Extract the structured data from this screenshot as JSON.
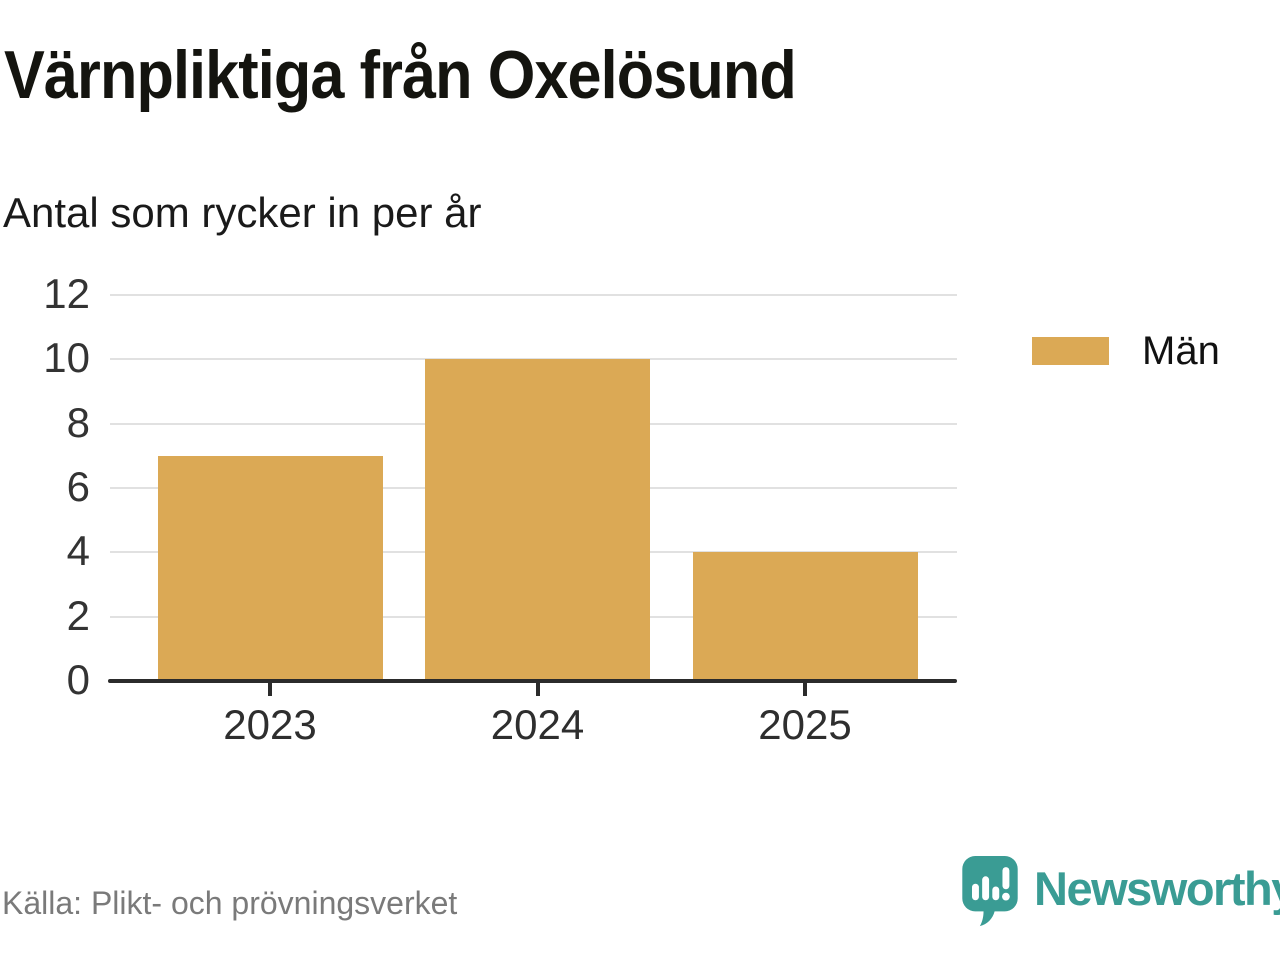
{
  "header": {
    "title": "Värnpliktiga från Oxelösund",
    "subtitle": "Antal som rycker in per år"
  },
  "chart_data": {
    "type": "bar",
    "categories": [
      "2023",
      "2024",
      "2025"
    ],
    "series": [
      {
        "name": "Män",
        "values": [
          7,
          10,
          4
        ],
        "color": "#dba955"
      }
    ],
    "title": "Värnpliktiga från Oxelösund",
    "subtitle": "Antal som rycker in per år",
    "xlabel": "",
    "ylabel": "",
    "ylim": [
      0,
      12
    ],
    "yticks": [
      0,
      2,
      4,
      6,
      8,
      10,
      12
    ],
    "grid": true,
    "legend_position": "right"
  },
  "legend": {
    "items": [
      {
        "label": "Män",
        "color": "#dba955"
      }
    ]
  },
  "footer": {
    "source": "Källa: Plikt- och prövningsverket",
    "brand_name": "Newsworthy"
  },
  "colors": {
    "bar": "#dba955",
    "grid": "#e1e1e1",
    "axis": "#2b2b2b",
    "brand_teal": "#3a9c94",
    "text_dark": "#1a1a1a",
    "text_muted": "#7a7a7a"
  }
}
